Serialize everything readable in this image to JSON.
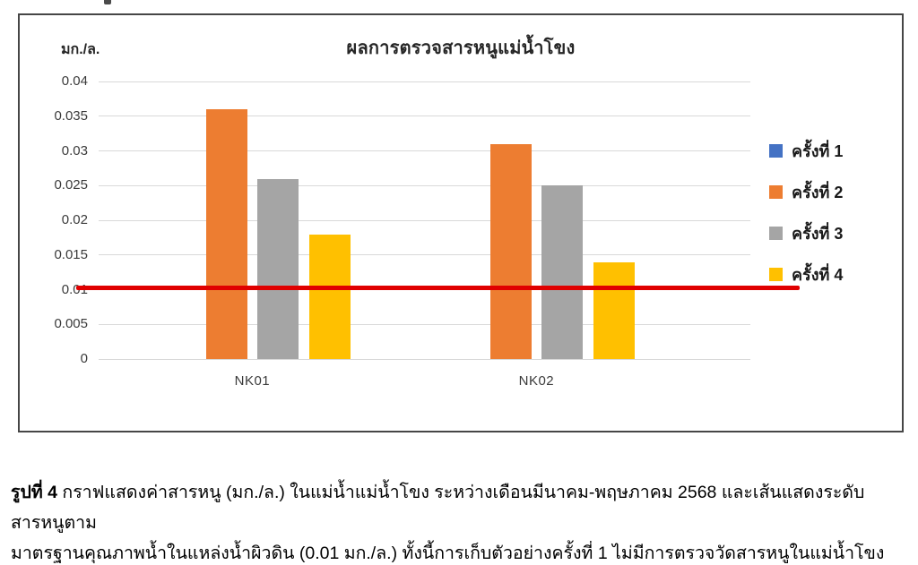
{
  "chart_data": {
    "type": "bar",
    "title": "ผลการตรวจสารหนูแม่น้ำโขง",
    "ylabel": "มก./ล.",
    "xlabel": "",
    "categories": [
      "NK01",
      "NK02"
    ],
    "series": [
      {
        "name": "ครั้งที่ 1",
        "color": "#4472C4",
        "values": [
          null,
          null
        ]
      },
      {
        "name": "ครั้งที่ 2",
        "color": "#ED7D31",
        "values": [
          0.036,
          0.031
        ]
      },
      {
        "name": "ครั้งที่ 3",
        "color": "#A5A5A5",
        "values": [
          0.026,
          0.025
        ]
      },
      {
        "name": "ครั้งที่ 4",
        "color": "#FFC000",
        "values": [
          0.018,
          0.014
        ]
      }
    ],
    "ylim": [
      0,
      0.04
    ],
    "ytick_labels": [
      "0.04",
      "0.035",
      "0.03",
      "0.025",
      "0.02",
      "0.015",
      "0.01",
      "0.005",
      "0"
    ],
    "grid": true,
    "gridline_color": "#D9D9D9",
    "legend_position": "right",
    "reference_line": {
      "value": 0.01,
      "color": "#E00000",
      "meaning": "มาตรฐานคุณภาพน้ำในแหล่งน้ำผิวดิน 0.01 มก./ล."
    }
  },
  "caption": {
    "bold_label": "รูปที่ 4",
    "line1_rest": " กราฟแสดงค่าสารหนู (มก./ล.) ในแม่น้ำแม่น้ำโขง ระหว่างเดือนมีนาคม-พฤษภาคม 2568 และเส้นแสดงระดับสารหนูตาม",
    "line2": "มาตรฐานคุณภาพน้ำในแหล่งน้ำผิวดิน (0.01 มก./ล.) ทั้งนี้การเก็บตัวอย่างครั้งที่ 1 ไม่มีการตรวจวัดสารหนูในแม่น้ำโขง"
  }
}
